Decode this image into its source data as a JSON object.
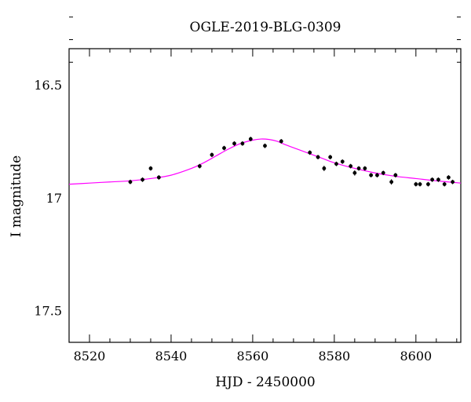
{
  "chart_data": {
    "type": "scatter",
    "title": "OGLE-2019-BLG-0309",
    "xlabel": "HJD - 2450000",
    "ylabel": "I magnitude",
    "xlim": [
      8515,
      8611
    ],
    "ylim": [
      17.64,
      16.34
    ],
    "y_inverted": true,
    "grid": false,
    "xticks": [
      8520,
      8540,
      8560,
      8580,
      8600
    ],
    "yticks": [
      16.5,
      17,
      17.5
    ],
    "ytick_labels": [
      "16.5",
      "17",
      "17.5"
    ],
    "series": [
      {
        "kind": "points",
        "color": "#000000",
        "points": [
          {
            "x": 8530.0,
            "y": 16.93,
            "err": 0.01
          },
          {
            "x": 8533.0,
            "y": 16.92,
            "err": 0.01
          },
          {
            "x": 8535.0,
            "y": 16.87,
            "err": 0.01
          },
          {
            "x": 8537.0,
            "y": 16.91,
            "err": 0.01
          },
          {
            "x": 8547.0,
            "y": 16.86,
            "err": 0.01
          },
          {
            "x": 8550.0,
            "y": 16.81,
            "err": 0.01
          },
          {
            "x": 8553.0,
            "y": 16.78,
            "err": 0.01
          },
          {
            "x": 8555.5,
            "y": 16.76,
            "err": 0.01
          },
          {
            "x": 8557.5,
            "y": 16.76,
            "err": 0.01
          },
          {
            "x": 8559.5,
            "y": 16.74,
            "err": 0.01
          },
          {
            "x": 8563.0,
            "y": 16.77,
            "err": 0.01
          },
          {
            "x": 8567.0,
            "y": 16.75,
            "err": 0.01
          },
          {
            "x": 8574.0,
            "y": 16.8,
            "err": 0.01
          },
          {
            "x": 8576.0,
            "y": 16.82,
            "err": 0.01
          },
          {
            "x": 8577.5,
            "y": 16.87,
            "err": 0.012
          },
          {
            "x": 8579.0,
            "y": 16.82,
            "err": 0.01
          },
          {
            "x": 8580.5,
            "y": 16.85,
            "err": 0.01
          },
          {
            "x": 8582.0,
            "y": 16.84,
            "err": 0.01
          },
          {
            "x": 8584.0,
            "y": 16.86,
            "err": 0.01
          },
          {
            "x": 8585.0,
            "y": 16.89,
            "err": 0.012
          },
          {
            "x": 8586.0,
            "y": 16.87,
            "err": 0.01
          },
          {
            "x": 8587.5,
            "y": 16.87,
            "err": 0.01
          },
          {
            "x": 8589.0,
            "y": 16.9,
            "err": 0.01
          },
          {
            "x": 8590.5,
            "y": 16.9,
            "err": 0.01
          },
          {
            "x": 8592.0,
            "y": 16.89,
            "err": 0.01
          },
          {
            "x": 8594.0,
            "y": 16.93,
            "err": 0.012
          },
          {
            "x": 8595.0,
            "y": 16.9,
            "err": 0.01
          },
          {
            "x": 8600.0,
            "y": 16.94,
            "err": 0.01
          },
          {
            "x": 8601.0,
            "y": 16.94,
            "err": 0.01
          },
          {
            "x": 8603.0,
            "y": 16.94,
            "err": 0.01
          },
          {
            "x": 8604.0,
            "y": 16.92,
            "err": 0.01
          },
          {
            "x": 8605.5,
            "y": 16.92,
            "err": 0.01
          },
          {
            "x": 8607.0,
            "y": 16.94,
            "err": 0.01
          },
          {
            "x": 8608.0,
            "y": 16.91,
            "err": 0.01
          },
          {
            "x": 8609.0,
            "y": 16.93,
            "err": 0.01
          }
        ]
      },
      {
        "kind": "model-curve",
        "color": "#ff00ff",
        "x": [
          8515,
          8520,
          8525,
          8530,
          8535,
          8540,
          8545,
          8548,
          8551,
          8554,
          8557,
          8560,
          8562,
          8564,
          8566,
          8568,
          8571,
          8574,
          8577,
          8580,
          8585,
          8590,
          8595,
          8600,
          8605,
          8611
        ],
        "y": [
          16.94,
          16.935,
          16.93,
          16.925,
          16.915,
          16.9,
          16.87,
          16.845,
          16.815,
          16.785,
          16.76,
          16.745,
          16.74,
          16.742,
          16.75,
          16.765,
          16.785,
          16.805,
          16.825,
          16.845,
          16.87,
          16.89,
          16.905,
          16.915,
          16.925,
          16.935
        ]
      }
    ]
  }
}
